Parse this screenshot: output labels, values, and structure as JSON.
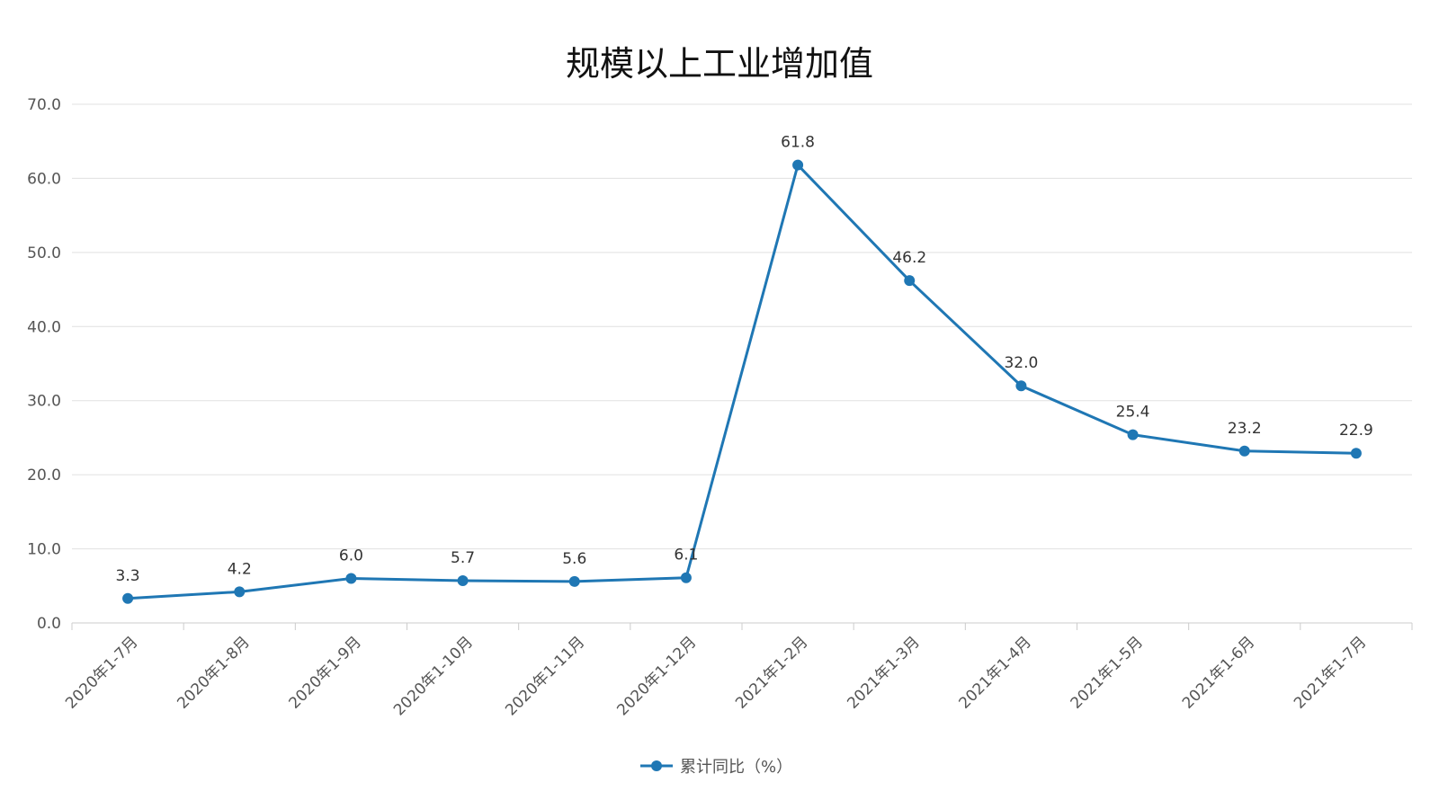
{
  "chart_data": {
    "type": "line",
    "title": "规模以上工业增加值",
    "xlabel": "",
    "ylabel": "",
    "categories": [
      "2020年1-7月",
      "2020年1-8月",
      "2020年1-9月",
      "2020年1-10月",
      "2020年1-11月",
      "2020年1-12月",
      "2021年1-2月",
      "2021年1-3月",
      "2021年1-4月",
      "2021年1-5月",
      "2021年1-6月",
      "2021年1-7月"
    ],
    "series": [
      {
        "name": "累计同比（%）",
        "values": [
          3.3,
          4.2,
          6.0,
          5.7,
          5.6,
          6.1,
          61.8,
          46.2,
          32.0,
          25.4,
          23.2,
          22.9
        ],
        "labels": [
          "3.3",
          "4.2",
          "6.0",
          "5.7",
          "5.6",
          "6.1",
          "61.8",
          "46.2",
          "32.0",
          "25.4",
          "23.2",
          "22.9"
        ]
      }
    ],
    "ylim": [
      0,
      70
    ],
    "yticks": [
      "0.0",
      "10.0",
      "20.0",
      "30.0",
      "40.0",
      "50.0",
      "60.0",
      "70.0"
    ],
    "grid": true,
    "legend": "bottom-center",
    "colors": {
      "series": "#1f77b4",
      "grid": "#e0e0e0",
      "axis": "#cccccc"
    }
  }
}
